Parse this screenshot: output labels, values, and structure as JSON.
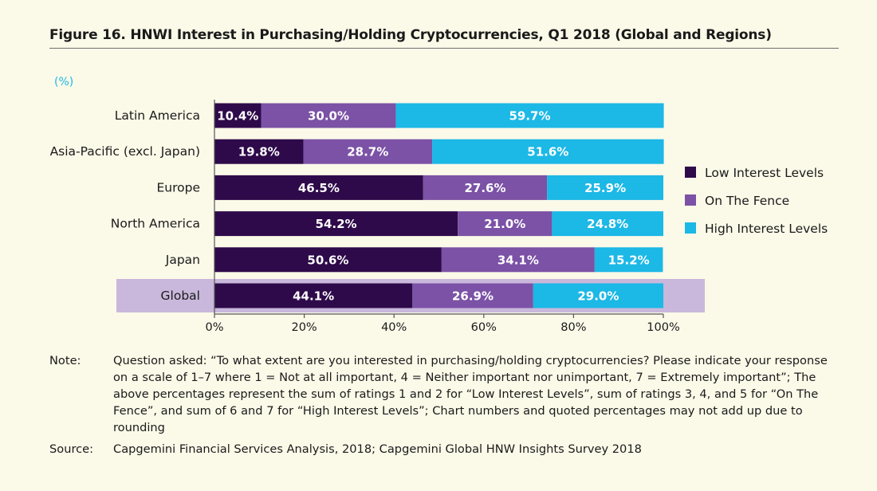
{
  "figure": {
    "title": "Figure 16. HNWI Interest in Purchasing/Holding Cryptocurrencies, Q1 2018 (Global and Regions)"
  },
  "chart_data": {
    "type": "bar",
    "orientation": "horizontal",
    "stacked": true,
    "unit_label": "(%)",
    "categories": [
      "Latin America",
      "Asia-Pacific (excl. Japan)",
      "Europe",
      "North America",
      "Japan",
      "Global"
    ],
    "highlighted_category": "Global",
    "series": [
      {
        "name": "Low Interest Levels",
        "color": "#2e0a4a",
        "values": [
          10.4,
          19.8,
          46.5,
          54.2,
          50.6,
          44.1
        ]
      },
      {
        "name": "On The Fence",
        "color": "#7b52a6",
        "values": [
          30.0,
          28.7,
          27.6,
          21.0,
          34.1,
          26.9
        ]
      },
      {
        "name": "High Interest Levels",
        "color": "#1cb8e6",
        "values": [
          59.7,
          51.6,
          25.9,
          24.8,
          15.2,
          29.0
        ]
      }
    ],
    "x_ticks": [
      "0%",
      "20%",
      "40%",
      "60%",
      "80%",
      "100%"
    ],
    "xlim": [
      0,
      100
    ],
    "grid": false,
    "legend_position": "right",
    "highlight_color": "#c9b8dc",
    "unit_color": "#1cb8e6"
  },
  "note": {
    "label": "Note:",
    "text": "Question asked: “To what extent are you interested in purchasing/holding cryptocurrencies? Please indicate your response on a scale of 1–7 where 1 = Not at all important, 4 = Neither important nor unimportant, 7 = Extremely important”; The above percentages represent the sum of ratings 1 and 2 for “Low Interest Levels”,  sum of ratings 3, 4, and 5 for “On The Fence”, and sum of 6 and 7 for “High Interest Levels”;  Chart numbers and quoted percentages may not add up due to rounding"
  },
  "source": {
    "label": "Source:",
    "text": "Capgemini Financial Services Analysis, 2018; Capgemini Global HNW Insights Survey 2018"
  }
}
